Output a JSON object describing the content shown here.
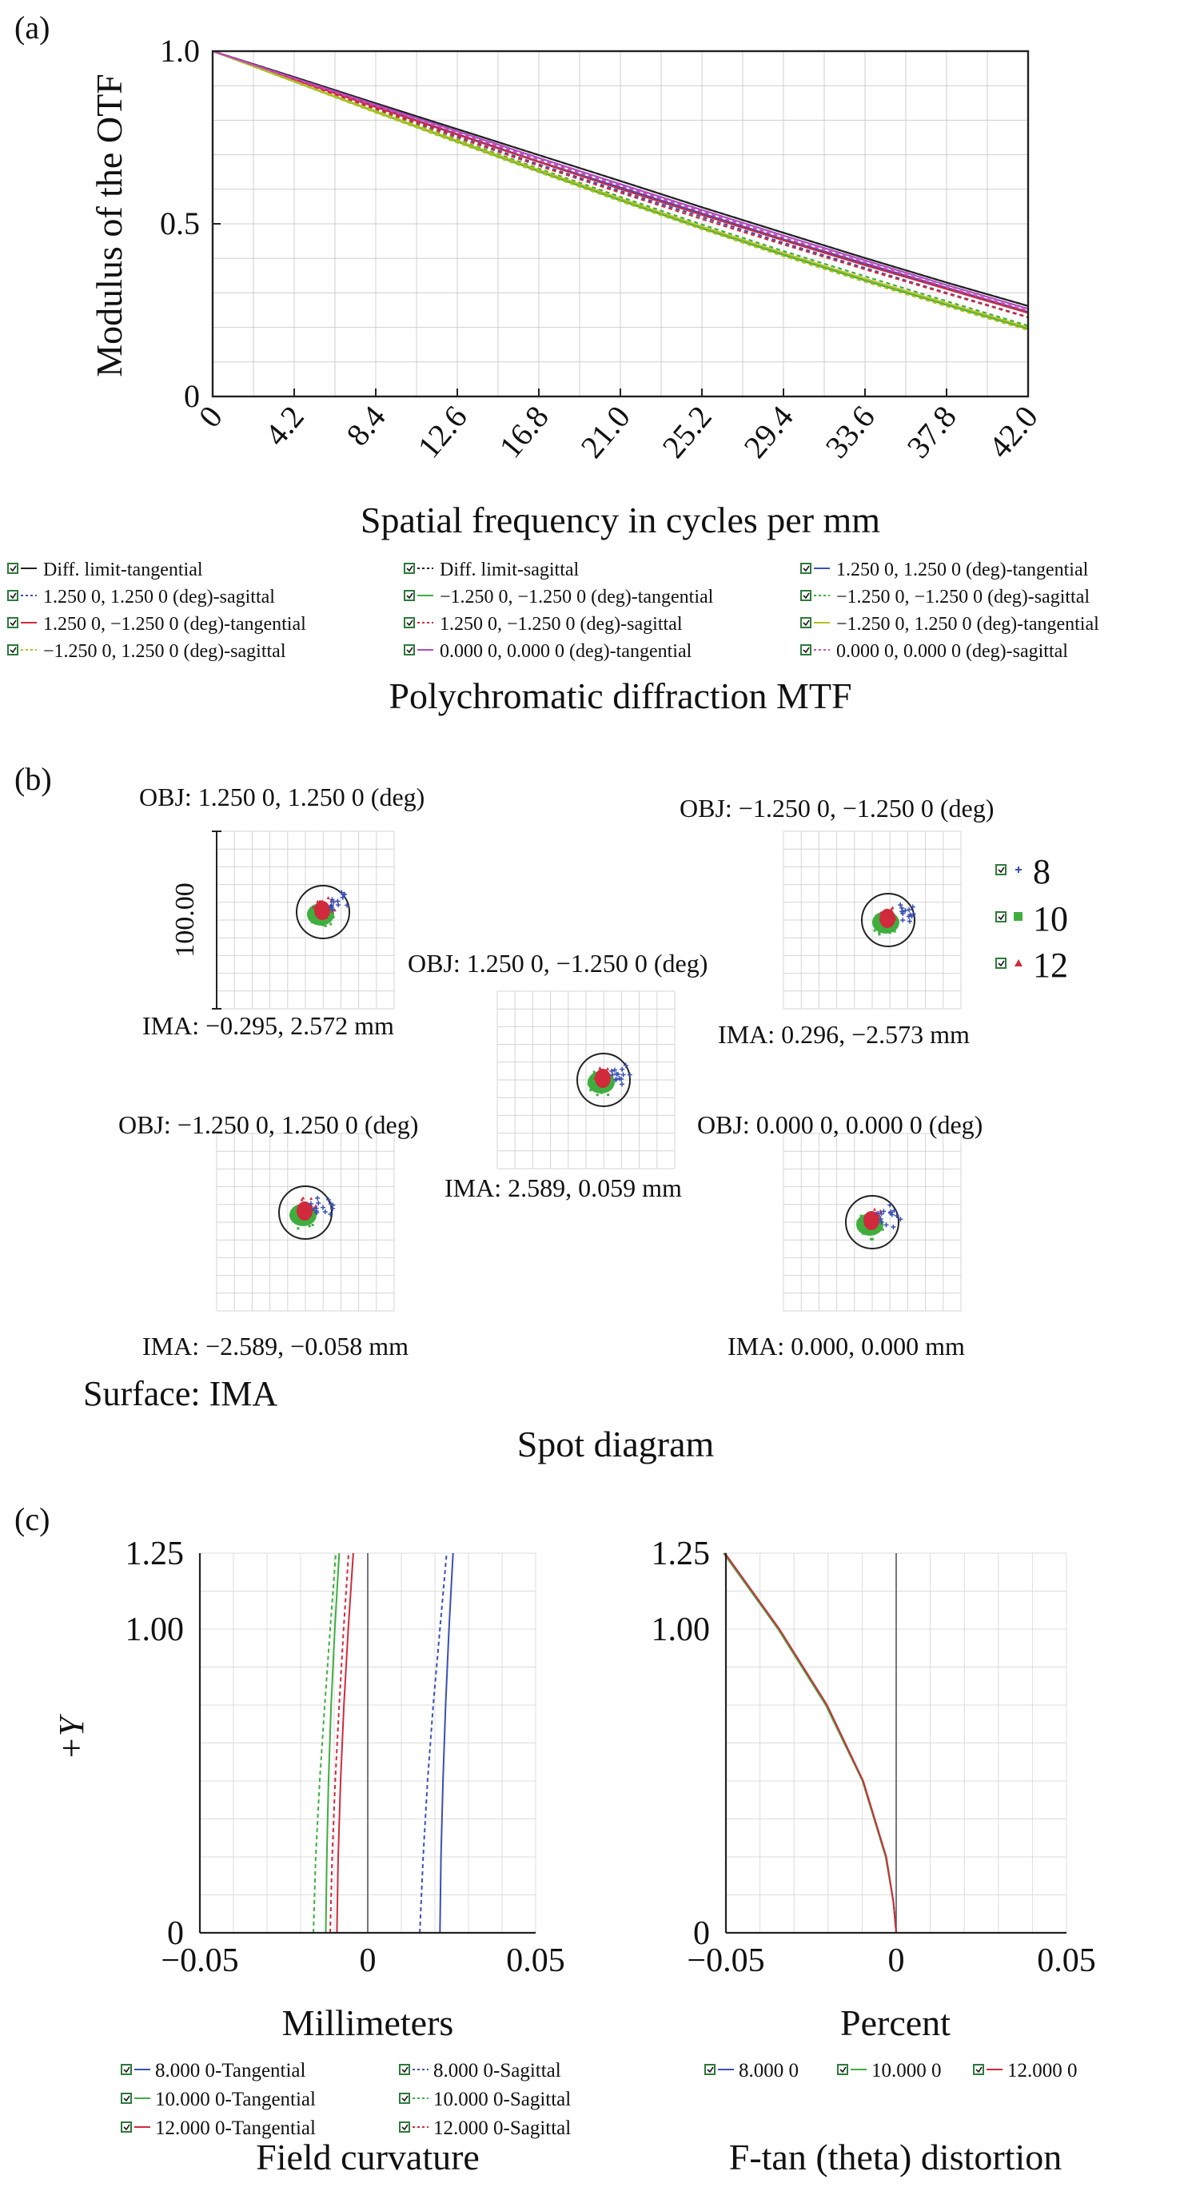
{
  "panels": {
    "a": {
      "tag": "(a)",
      "chart_data": {
        "type": "line",
        "title": "Polychromatic diffraction MTF",
        "xlabel": "Spatial frequency in cycles per mm",
        "ylabel": "Modulus of the OTF",
        "xlim": [
          0,
          42.0
        ],
        "ylim": [
          0,
          1.0
        ],
        "xticks": [
          "0",
          "4.2",
          "8.4",
          "12.6",
          "16.8",
          "21.0",
          "25.2",
          "29.4",
          "33.6",
          "37.8",
          "42.0"
        ],
        "yticks": [
          "0",
          "0.5",
          "1.0"
        ],
        "grid": true,
        "legend_position": "bottom",
        "x": [
          0,
          4.2,
          8.4,
          12.6,
          16.8,
          21.0,
          25.2,
          29.4,
          33.6,
          37.8,
          42.0
        ],
        "series": [
          {
            "name": "Diff. limit-tangential",
            "color": "#222222",
            "dash": false,
            "values": [
              1.0,
              0.925,
              0.849,
              0.774,
              0.699,
              0.624,
              0.548,
              0.474,
              0.401,
              0.33,
              0.262
            ]
          },
          {
            "name": "Diff. limit-sagittal",
            "color": "#222222",
            "dash": true,
            "values": [
              1.0,
              0.925,
              0.849,
              0.774,
              0.699,
              0.624,
              0.548,
              0.474,
              0.401,
              0.33,
              0.262
            ]
          },
          {
            "name": "1.250 0, 1.250 0 (deg)-tangential",
            "color": "#3a4fb5",
            "dash": false,
            "values": [
              1.0,
              0.92,
              0.84,
              0.76,
              0.68,
              0.605,
              0.53,
              0.455,
              0.385,
              0.315,
              0.245
            ]
          },
          {
            "name": "1.250 0, 1.250 0 (deg)-sagittal",
            "color": "#3a4fb5",
            "dash": true,
            "values": [
              1.0,
              0.917,
              0.835,
              0.753,
              0.672,
              0.595,
              0.52,
              0.445,
              0.372,
              0.3,
              0.23
            ]
          },
          {
            "name": "−1.250 0, −1.250 0 (deg)-tangential",
            "color": "#3fae3f",
            "dash": false,
            "values": [
              1.0,
              0.912,
              0.824,
              0.738,
              0.652,
              0.568,
              0.487,
              0.41,
              0.336,
              0.265,
              0.196
            ]
          },
          {
            "name": "−1.250 0, −1.250 0 (deg)-sagittal",
            "color": "#3fae3f",
            "dash": true,
            "values": [
              1.0,
              0.914,
              0.829,
              0.744,
              0.66,
              0.578,
              0.498,
              0.421,
              0.348,
              0.276,
              0.205
            ]
          },
          {
            "name": "1.250 0, −1.250 0 (deg)-tangential",
            "color": "#d02a3c",
            "dash": false,
            "values": [
              1.0,
              0.918,
              0.838,
              0.758,
              0.679,
              0.601,
              0.526,
              0.452,
              0.38,
              0.311,
              0.242
            ]
          },
          {
            "name": "1.250 0, −1.250 0 (deg)-sagittal",
            "color": "#d02a3c",
            "dash": true,
            "values": [
              1.0,
              0.916,
              0.833,
              0.75,
              0.668,
              0.59,
              0.514,
              0.44,
              0.368,
              0.298,
              0.229
            ]
          },
          {
            "name": "−1.250 0, 1.250 0 (deg)-tangential",
            "color": "#b5c020",
            "dash": false,
            "values": [
              1.0,
              0.913,
              0.826,
              0.741,
              0.656,
              0.573,
              0.492,
              0.415,
              0.341,
              0.27,
              0.2
            ]
          },
          {
            "name": "−1.250 0, 1.250 0 (deg)-sagittal",
            "color": "#b5c020",
            "dash": true,
            "values": [
              1.0,
              0.911,
              0.822,
              0.735,
              0.649,
              0.565,
              0.484,
              0.406,
              0.332,
              0.261,
              0.192
            ]
          },
          {
            "name": "0.000 0, 0.000 0 (deg)-tangential",
            "color": "#b04ac0",
            "dash": false,
            "values": [
              1.0,
              0.922,
              0.845,
              0.768,
              0.691,
              0.615,
              0.54,
              0.466,
              0.394,
              0.323,
              0.254
            ]
          },
          {
            "name": "0.000 0, 0.000 0 (deg)-sagittal",
            "color": "#d04ab5",
            "dash": true,
            "values": [
              1.0,
              0.92,
              0.842,
              0.764,
              0.686,
              0.61,
              0.535,
              0.46,
              0.388,
              0.317,
              0.248
            ]
          }
        ]
      }
    },
    "b": {
      "tag": "(b)",
      "title": "Spot diagram",
      "surface": "Surface: IMA",
      "scale_label": "100.00",
      "legend": [
        {
          "label": "8",
          "color": "#3a4fb5",
          "marker": "plus"
        },
        {
          "label": "10",
          "color": "#3fae3f",
          "marker": "square"
        },
        {
          "label": "12",
          "color": "#d02a3c",
          "marker": "triangle"
        }
      ],
      "spots": [
        {
          "obj": "OBJ: 1.250 0, 1.250 0 (deg)",
          "ima": "IMA: −0.295, 2.572 mm"
        },
        {
          "obj": "OBJ: −1.250 0, −1.250 0 (deg)",
          "ima": "IMA: 0.296, −2.573 mm"
        },
        {
          "obj": "OBJ: 1.250 0, −1.250 0 (deg)",
          "ima": "IMA: 2.589, 0.059 mm"
        },
        {
          "obj": "OBJ: −1.250 0, 1.250 0 (deg)",
          "ima": "IMA: −2.589, −0.058 mm"
        },
        {
          "obj": "OBJ: 0.000 0, 0.000 0 (deg)",
          "ima": "IMA: 0.000, 0.000 mm"
        }
      ]
    },
    "c": {
      "tag": "(c)",
      "field_curvature": {
        "type": "line",
        "title": "Field curvature",
        "xlabel": "Millimeters",
        "ylabel": "+Y",
        "xlim": [
          -0.05,
          0.05
        ],
        "ylim": [
          0,
          1.25
        ],
        "xticks": [
          "−0.05",
          "0",
          "0.05"
        ],
        "yticks": [
          "0",
          "1.00",
          "1.25"
        ],
        "y": [
          0,
          0.25,
          0.5,
          0.75,
          1.0,
          1.25
        ],
        "series": [
          {
            "name": "8.000 0-Tangential",
            "color": "#3a4fb5",
            "dash": false,
            "x": [
              0.0215,
              0.0218,
              0.0224,
              0.0232,
              0.0242,
              0.0254
            ]
          },
          {
            "name": "8.000 0-Sagittal",
            "color": "#3a4fb5",
            "dash": true,
            "x": [
              0.0155,
              0.0165,
              0.0178,
              0.0195,
              0.0215,
              0.0235
            ]
          },
          {
            "name": "10.000 0-Tangential",
            "color": "#3fae3f",
            "dash": false,
            "x": [
              -0.0125,
              -0.0122,
              -0.0117,
              -0.0109,
              -0.0098,
              -0.0085
            ]
          },
          {
            "name": "10.000 0-Sagittal",
            "color": "#3fae3f",
            "dash": true,
            "x": [
              -0.0162,
              -0.0155,
              -0.0143,
              -0.0128,
              -0.0112,
              -0.0095
            ]
          },
          {
            "name": "12.000 0-Tangential",
            "color": "#d02a3c",
            "dash": false,
            "x": [
              -0.0092,
              -0.0088,
              -0.0081,
              -0.0071,
              -0.0058,
              -0.0043
            ]
          },
          {
            "name": "12.000 0-Sagittal",
            "color": "#d02a3c",
            "dash": true,
            "x": [
              -0.0112,
              -0.0106,
              -0.0097,
              -0.0085,
              -0.0072,
              -0.0057
            ]
          }
        ]
      },
      "distortion": {
        "type": "line",
        "title": "F-tan (theta) distortion",
        "xlabel": "Percent",
        "xlim": [
          -0.05,
          0.05
        ],
        "ylim": [
          0,
          1.25
        ],
        "xticks": [
          "−0.05",
          "0",
          "0.05"
        ],
        "yticks": [
          "0",
          "1.00",
          "1.25"
        ],
        "y": [
          0,
          0.1,
          0.25,
          0.5,
          0.75,
          1.0,
          1.25
        ],
        "series": [
          {
            "name": "8.000 0",
            "color": "#3a4fb5",
            "x": [
              0,
              -0.0008,
              -0.003,
              -0.0098,
              -0.0205,
              -0.0345,
              -0.0505
            ]
          },
          {
            "name": "10.000 0",
            "color": "#3fae3f",
            "x": [
              0,
              -0.0008,
              -0.0031,
              -0.0099,
              -0.0207,
              -0.0347,
              -0.0507
            ]
          },
          {
            "name": "12.000 0",
            "color": "#d02a3c",
            "x": [
              0,
              -0.0008,
              -0.0029,
              -0.0097,
              -0.0203,
              -0.0343,
              -0.0503
            ]
          }
        ]
      }
    }
  }
}
